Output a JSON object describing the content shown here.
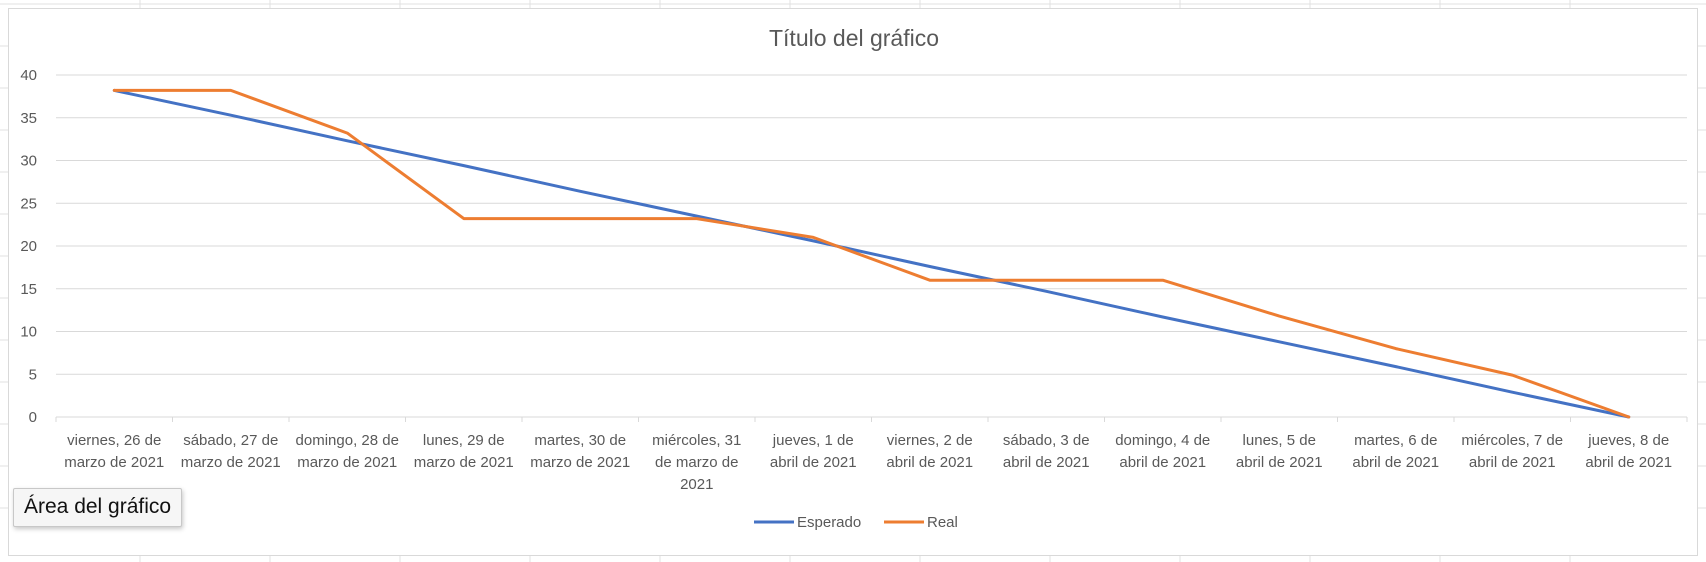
{
  "tooltip": {
    "text": "Área del gráfico"
  },
  "colors": {
    "esperado": "#4472c4",
    "real": "#ed7d31",
    "grid": "#d9d9d9",
    "text": "#595959"
  },
  "chart_data": {
    "type": "line",
    "title": "Título del gráfico",
    "xlabel": "",
    "ylabel": "",
    "ylim": [
      0,
      40
    ],
    "yticks": [
      0,
      5,
      10,
      15,
      20,
      25,
      30,
      35,
      40
    ],
    "grid": true,
    "legend_position": "bottom",
    "categories": [
      "viernes, 26 de marzo de 2021",
      "sábado, 27 de marzo de 2021",
      "domingo, 28 de marzo de 2021",
      "lunes, 29 de marzo de 2021",
      "martes, 30 de marzo de 2021",
      "miércoles, 31 de marzo de 2021",
      "jueves, 1 de abril de 2021",
      "viernes, 2 de abril de 2021",
      "sábado, 3 de abril de 2021",
      "domingo, 4 de abril de 2021",
      "lunes, 5 de abril de 2021",
      "martes, 6 de abril de 2021",
      "miércoles, 7 de abril de 2021",
      "jueves, 8 de abril de 2021"
    ],
    "category_lines": [
      [
        "viernes, 26 de",
        "marzo de 2021"
      ],
      [
        "sábado, 27 de",
        "marzo de 2021"
      ],
      [
        "domingo, 28 de",
        "marzo de 2021"
      ],
      [
        "lunes, 29 de",
        "marzo de 2021"
      ],
      [
        "martes, 30 de",
        "marzo de 2021"
      ],
      [
        "miércoles, 31",
        "de marzo de",
        "2021"
      ],
      [
        "jueves, 1 de",
        "abril de 2021"
      ],
      [
        "viernes, 2 de",
        "abril de 2021"
      ],
      [
        "sábado, 3 de",
        "abril de 2021"
      ],
      [
        "domingo, 4 de",
        "abril de 2021"
      ],
      [
        "lunes, 5 de",
        "abril de 2021"
      ],
      [
        "martes, 6 de",
        "abril de 2021"
      ],
      [
        "miércoles, 7 de",
        "abril de 2021"
      ],
      [
        "jueves, 8 de",
        "abril de 2021"
      ]
    ],
    "series": [
      {
        "name": "Esperado",
        "color": "#4472c4",
        "values": [
          38.2,
          35.3,
          32.3,
          29.4,
          26.4,
          23.5,
          20.6,
          17.6,
          14.7,
          11.7,
          8.8,
          5.9,
          2.9,
          0
        ]
      },
      {
        "name": "Real",
        "color": "#ed7d31",
        "values": [
          38.2,
          38.2,
          33.2,
          23.2,
          23.2,
          23.2,
          21.0,
          16.0,
          16.0,
          16.0,
          11.8,
          8.0,
          4.9,
          0
        ]
      }
    ]
  }
}
